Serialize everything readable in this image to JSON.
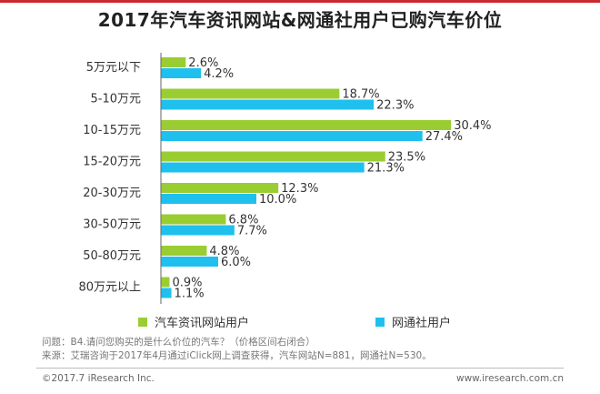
{
  "title": "2017年汽车资讯网站&网通社用户已购汽车价位",
  "colors": {
    "accent": "#c9282d",
    "series1": "#9acd32",
    "series2": "#1fc0ee"
  },
  "chart_data": {
    "type": "bar",
    "orientation": "horizontal",
    "title": "2017年汽车资讯网站&网通社用户已购汽车价位",
    "categories": [
      "5万元以下",
      "5-10万元",
      "10-15万元",
      "15-20万元",
      "20-30万元",
      "30-50万元",
      "50-80万元",
      "80万元以上"
    ],
    "series": [
      {
        "name": "汽车资讯网站用户",
        "values": [
          2.6,
          18.7,
          30.4,
          23.5,
          12.3,
          6.8,
          4.8,
          0.9
        ],
        "color": "#9acd32"
      },
      {
        "name": "网通社用户",
        "values": [
          4.2,
          22.3,
          27.4,
          21.3,
          10.0,
          7.7,
          6.0,
          1.1
        ],
        "color": "#1fc0ee"
      }
    ],
    "value_suffix": "%",
    "legend_position": "bottom",
    "grid": false
  },
  "legend": {
    "series1_label": "汽车资讯网站用户",
    "series2_label": "网通社用户"
  },
  "notes": {
    "question": "问题：B4.请问您购买的是什么价位的汽车？（价格区间右闭合）",
    "source": "来源：艾瑞咨询于2017年4月通过iClick网上调查获得，汽车网站N=881，网通社N=530。"
  },
  "footer": {
    "copyright": "©2017.7 iResearch Inc.",
    "website": "www.iresearch.com.cn"
  }
}
